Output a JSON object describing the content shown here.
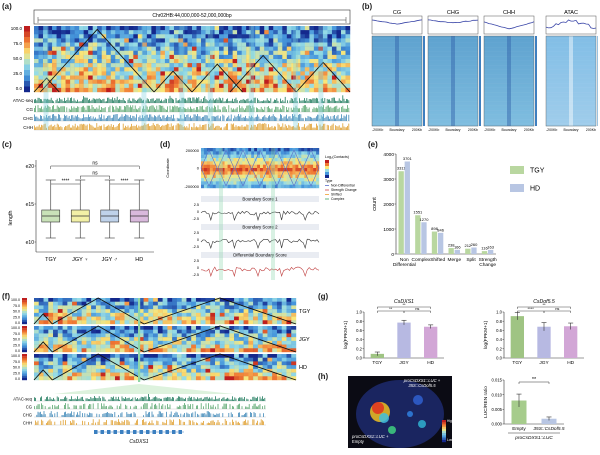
{
  "figure": {
    "panels": {
      "a": "(a)",
      "b": "(b)",
      "c": "(c)",
      "d": "(d)",
      "e": "(e)",
      "f": "(f)",
      "g": "(g)",
      "h": "(h)"
    }
  },
  "panel_a": {
    "region": "Chr02HB:44,000,000-52,000,000bp",
    "yticks": [
      "100.0",
      "75.0",
      "50.0",
      "25.0",
      "0.0"
    ],
    "tracks": [
      "ATAC-seq",
      "CG",
      "CHG",
      "CHH"
    ]
  },
  "panel_b": {
    "titles": [
      "CG",
      "CHG",
      "CHH",
      "ATAC"
    ],
    "xtick_left": "-200Kb",
    "xtick_mid": "Boundary",
    "xtick_right": "200Kb"
  },
  "panel_c": {
    "ylabel": "length",
    "yticks": [
      "e20",
      "e15",
      "e10"
    ],
    "sig": [
      "ns",
      "****",
      "ns",
      "****"
    ],
    "categories": [
      "TGY",
      "JGY ♀",
      "JGY ♂",
      "HD"
    ],
    "colors": [
      "#c9e2b8",
      "#f2f0a6",
      "#bfd2ea",
      "#d9b9dc"
    ]
  },
  "panel_d": {
    "ytop": "200000",
    "ymid": "0",
    "ybot": "-200000",
    "ylabel": "Coordinate",
    "legend_title": "Log₂(Contacts)",
    "legend_types": [
      "Type",
      "Non-Differential",
      "Strength Change",
      "Shifted",
      "Complex"
    ],
    "track1": "Boundary Score 1",
    "track2": "Boundary Score 2",
    "track3": "Differential Boundary Score",
    "yt1": [
      "2.5",
      "0",
      "-2.5"
    ]
  },
  "chart_data": [
    {
      "type": "bar",
      "title": "",
      "xlabel": "",
      "ylabel": "count",
      "ylim": [
        0,
        4000
      ],
      "yticks": [
        "4000",
        "3000",
        "2000",
        "1000",
        "0"
      ],
      "categories": [
        "Non Differential",
        "Complex",
        "Shifted",
        "Merge",
        "Split",
        "Strength Change"
      ],
      "category_labels": [
        [
          "Non",
          "Differential"
        ],
        [
          "Complex"
        ],
        [
          "Shifted"
        ],
        [
          "Merge"
        ],
        [
          "Split"
        ],
        [
          "Strength",
          "Change"
        ]
      ],
      "series": [
        {
          "name": "TGY",
          "color": "#b9d7a0",
          "values": [
            3311,
            1551,
            898,
            238,
            212,
            116
          ]
        },
        {
          "name": "HD",
          "color": "#b8c6e3",
          "values": [
            3701,
            1270,
            846,
            166,
            260,
            163
          ]
        }
      ]
    },
    {
      "type": "bar",
      "title": "CsDXS1",
      "ylabel": "log(FPKM+1)",
      "ylim": [
        0,
        1.0
      ],
      "yticks": [
        "1.0",
        "0.8",
        "0.6",
        "0.4",
        "0.2",
        "0.0"
      ],
      "categories": [
        "TGY",
        "JGY",
        "HD"
      ],
      "values": [
        0.09,
        0.77,
        0.68
      ],
      "errors": [
        0.04,
        0.05,
        0.04
      ],
      "colors": [
        "#9fc483",
        "#b7b9e2",
        "#d2a6d6"
      ],
      "sig": [
        "**",
        "**",
        "ns"
      ]
    },
    {
      "type": "bar",
      "title": "CsDof5.5",
      "ylabel": "log(FPKM+1)",
      "ylim": [
        0,
        1.0
      ],
      "yticks": [
        "1.0",
        "0.8",
        "0.6",
        "0.4",
        "0.2",
        "0.0"
      ],
      "categories": [
        "TGY",
        "JGY",
        "HD"
      ],
      "values": [
        0.91,
        0.68,
        0.69
      ],
      "errors": [
        0.08,
        0.09,
        0.07
      ],
      "colors": [
        "#9fc483",
        "#b7b9e2",
        "#d2a6d6"
      ],
      "sig": [
        "**",
        "****",
        "ns"
      ]
    },
    {
      "type": "bar",
      "title": "",
      "ylabel": "LUC/REN ratio",
      "ylim": [
        0,
        0.015
      ],
      "yticks": [
        "0.015",
        "0.010",
        "0.005",
        "0.000"
      ],
      "categories": [
        "Empty",
        "35S::CsDof5.5"
      ],
      "values": [
        0.008,
        0.0018
      ],
      "errors": [
        0.0022,
        0.0006
      ],
      "colors": [
        "#a6cc8c",
        "#b8c6e3"
      ],
      "sig": [
        "**"
      ],
      "xlabel": "proCsDXS1::LUC"
    }
  ],
  "panel_f": {
    "yticks": [
      "100.0",
      "75.0",
      "50.0",
      "25.0",
      "0.0"
    ],
    "samples": [
      "TGY",
      "JGY",
      "HD"
    ],
    "tracks": [
      "ATAC-seq",
      "CG",
      "CHG",
      "CHH"
    ],
    "gene": "CsDXS1"
  },
  "panel_h": {
    "top_label_1": "proCsDXS1::LUC +",
    "top_label_2": "35S::CsDof5.5",
    "bottom_label_1": "proCsDXS1::LUC +",
    "bottom_label_2": "Empty",
    "scale_high": "High",
    "scale_low": "Low"
  }
}
